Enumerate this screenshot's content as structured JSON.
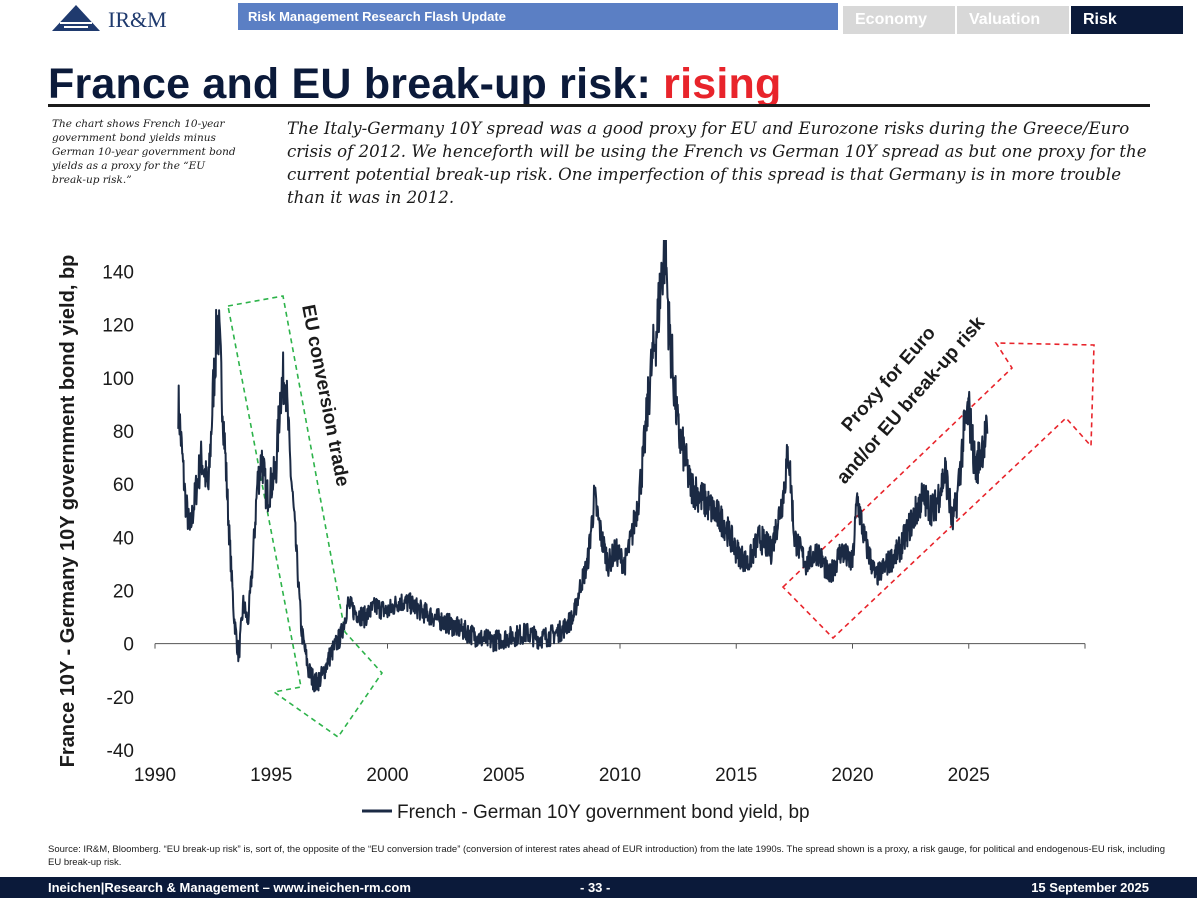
{
  "header": {
    "logo_text": "IR&M",
    "flash_title": "Risk Management Research Flash Update",
    "tabs": [
      {
        "label": "Economy",
        "active": false
      },
      {
        "label": "Valuation",
        "active": false
      },
      {
        "label": "Risk",
        "active": true
      }
    ]
  },
  "title": {
    "main": "France and EU break-up risk: ",
    "accent": "rising"
  },
  "side_note": "The chart shows French 10-year government bond yields minus German 10-year government bond yields as a proxy for the “EU break-up risk.”",
  "lead": "The Italy-Germany 10Y spread was a good proxy for EU and Eurozone risks during the Greece/Euro crisis of 2012. We henceforth will be using the French vs German 10Y spread as but one proxy for the current potential break-up risk. One imperfection of this spread is that Germany is in more trouble than it was in 2012.",
  "chart_data": {
    "type": "line",
    "title": "",
    "xlabel": "",
    "ylabel": "France 10Y - Germany 10Y government bond yield, bp",
    "xlim": [
      1990,
      2030
    ],
    "ylim": [
      -40,
      150
    ],
    "x_ticks": [
      1990,
      1995,
      2000,
      2005,
      2010,
      2015,
      2020,
      2025
    ],
    "y_ticks": [
      -40,
      -20,
      0,
      20,
      40,
      60,
      80,
      100,
      120,
      140
    ],
    "grid": false,
    "legend_position": "bottom",
    "series": [
      {
        "name": "French - German 10Y government bond yield, bp",
        "color": "#1b2a44",
        "x": [
          1991.0,
          1991.3,
          1991.5,
          1991.8,
          1992.0,
          1992.3,
          1992.5,
          1992.7,
          1992.85,
          1993.0,
          1993.2,
          1993.4,
          1993.6,
          1993.8,
          1994.0,
          1994.2,
          1994.4,
          1994.6,
          1994.8,
          1995.0,
          1995.2,
          1995.4,
          1995.6,
          1995.8,
          1996.0,
          1996.3,
          1996.6,
          1996.9,
          1997.2,
          1997.5,
          1997.8,
          1998.0,
          1998.3,
          1998.6,
          1999.0,
          1999.5,
          2000.0,
          2000.5,
          2001.0,
          2001.5,
          2002.0,
          2002.5,
          2003.0,
          2003.5,
          2004.0,
          2004.5,
          2005.0,
          2005.5,
          2006.0,
          2006.5,
          2007.0,
          2007.5,
          2008.0,
          2008.3,
          2008.6,
          2008.9,
          2009.2,
          2009.5,
          2009.8,
          2010.2,
          2010.5,
          2010.8,
          2011.0,
          2011.3,
          2011.6,
          2011.8,
          2011.95,
          2012.1,
          2012.3,
          2012.5,
          2012.8,
          2013.0,
          2013.5,
          2014.0,
          2014.5,
          2015.0,
          2015.5,
          2016.0,
          2016.5,
          2017.0,
          2017.25,
          2017.5,
          2018.0,
          2018.5,
          2019.0,
          2019.5,
          2020.0,
          2020.2,
          2020.5,
          2021.0,
          2021.5,
          2022.0,
          2022.5,
          2023.0,
          2023.5,
          2024.0,
          2024.3,
          2024.5,
          2024.8,
          2025.0,
          2025.3,
          2025.6,
          2025.8
        ],
        "values": [
          91,
          55,
          42,
          60,
          70,
          58,
          95,
          124,
          100,
          75,
          40,
          10,
          -5,
          15,
          8,
          30,
          60,
          70,
          55,
          60,
          65,
          95,
          102,
          70,
          45,
          5,
          -10,
          -15,
          -12,
          -5,
          0,
          3,
          15,
          12,
          10,
          14,
          12,
          16,
          15,
          12,
          10,
          8,
          6,
          4,
          2,
          1,
          2,
          3,
          4,
          2,
          3,
          5,
          10,
          22,
          30,
          55,
          40,
          30,
          35,
          30,
          40,
          55,
          70,
          100,
          120,
          140,
          150,
          120,
          100,
          80,
          70,
          60,
          55,
          50,
          45,
          35,
          30,
          40,
          35,
          55,
          73,
          40,
          30,
          35,
          25,
          35,
          30,
          55,
          40,
          25,
          30,
          35,
          45,
          55,
          50,
          65,
          45,
          55,
          80,
          88,
          65,
          75,
          79
        ]
      }
    ],
    "annotations": [
      {
        "text": "EU conversion trade",
        "color": "#2db34a",
        "style": "dashed-arrow",
        "direction": "down"
      },
      {
        "text": "Proxy for Euro and/or EU break-up risk",
        "color": "#e8242b",
        "style": "dashed-arrow",
        "direction": "up-right"
      }
    ],
    "colors": {
      "line": "#1b2a44",
      "conversion": "#2db34a",
      "breakup": "#e8242b"
    }
  },
  "source": "Source: IR&M, Bloomberg. “EU break-up risk” is, sort of, the opposite of the “EU conversion trade” (conversion of interest rates ahead of EUR introduction) from the late 1990s. The spread shown is a proxy, a risk gauge, for political and endogenous-EU risk, including EU break-up risk.",
  "footer": {
    "left": "Ineichen|Research & Management – www.ineichen-rm.com",
    "page": "- 33 -",
    "date": "15 September 2025"
  }
}
